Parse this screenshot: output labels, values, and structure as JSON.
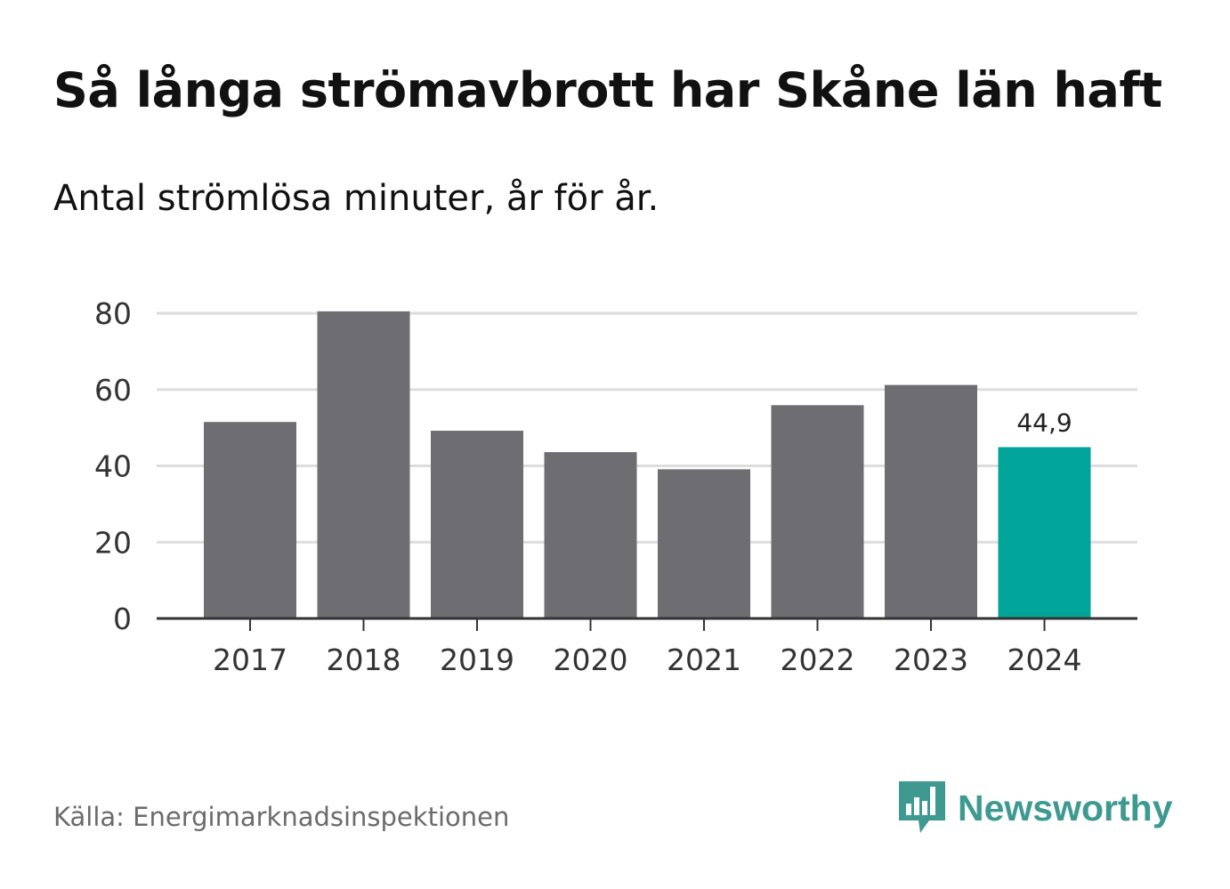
{
  "title": "Så långa strömavbrott har Skåne län haft",
  "subtitle": "Antal strömlösa minuter, år för år.",
  "source": "Källa: Energimarknadsinspektionen",
  "brand": {
    "name": "Newsworthy",
    "icon": "newsworthy-logo-icon",
    "color": "#3e9a91"
  },
  "colors": {
    "bar": "#6e6d72",
    "highlight": "#00a499",
    "grid": "#dddddd",
    "axis": "#333333",
    "tick_text": "#333333"
  },
  "chart_data": {
    "type": "bar",
    "title": "Så långa strömavbrott har Skåne län haft",
    "subtitle": "Antal strömlösa minuter, år för år.",
    "xlabel": "",
    "ylabel": "",
    "categories": [
      "2017",
      "2018",
      "2019",
      "2020",
      "2021",
      "2022",
      "2023",
      "2024"
    ],
    "values": [
      51.5,
      80.5,
      49.2,
      43.6,
      39.1,
      55.9,
      61.2,
      44.9
    ],
    "highlight_index": 7,
    "data_labels": [
      {
        "index": 7,
        "text": "44,9"
      }
    ],
    "ylim": [
      0,
      80
    ],
    "yticks": [
      0,
      20,
      40,
      60,
      80
    ],
    "grid": true,
    "legend": "none"
  }
}
